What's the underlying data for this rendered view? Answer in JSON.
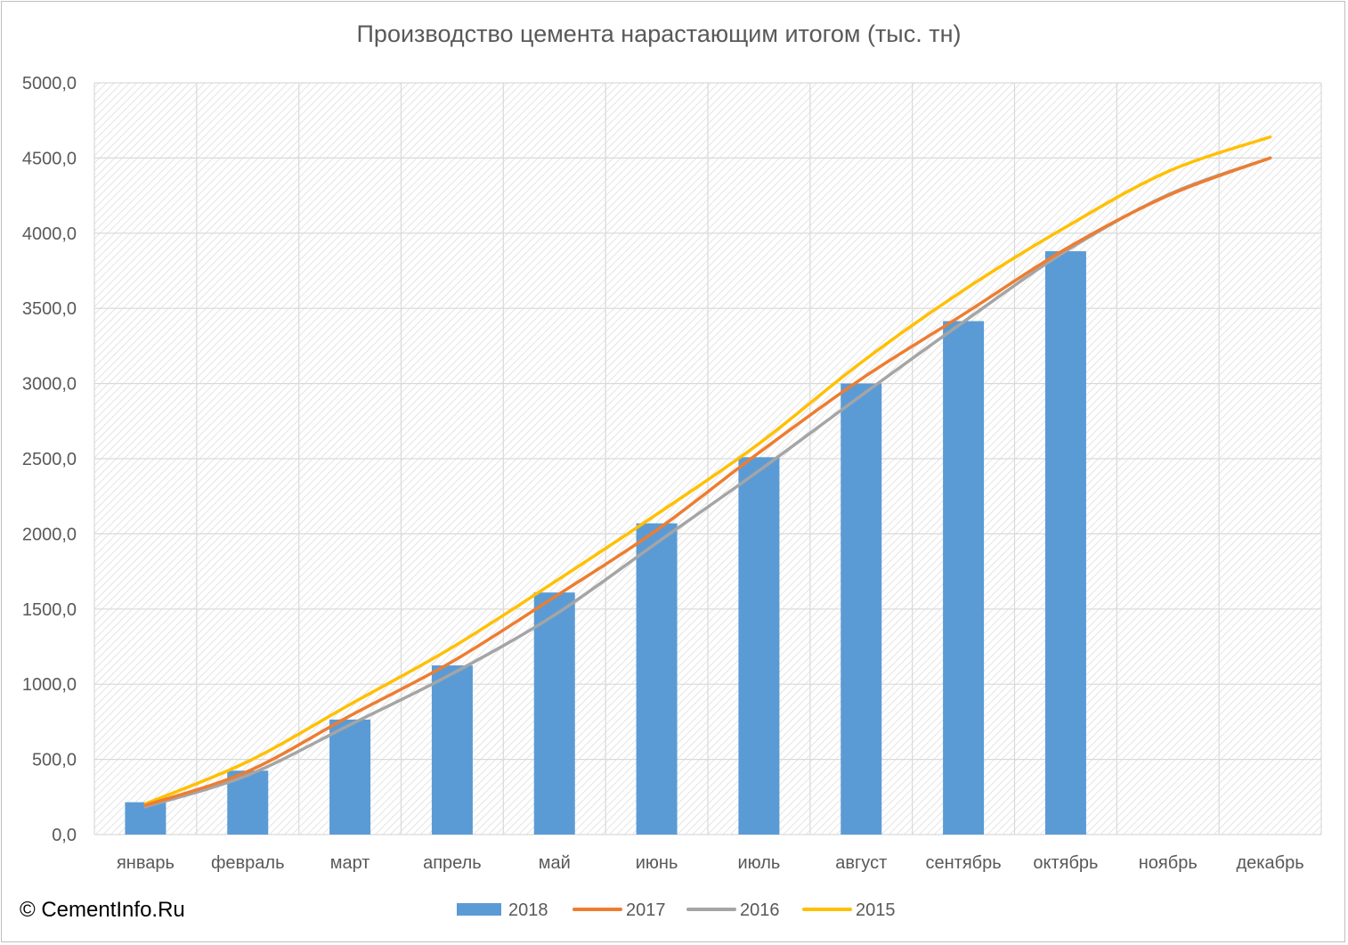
{
  "copyright": "© CementInfo.Ru",
  "chart_data": {
    "type": "bar+line",
    "title": "Производство цемента нарастающим итогом (тыс. тн)",
    "categories": [
      "январь",
      "февраль",
      "март",
      "апрель",
      "май",
      "июнь",
      "июль",
      "август",
      "сентябрь",
      "октябрь",
      "ноябрь",
      "декабрь"
    ],
    "ylim": [
      0,
      5000
    ],
    "yticks": [
      0,
      500,
      1000,
      1500,
      2000,
      2500,
      3000,
      3500,
      4000,
      4500,
      5000
    ],
    "ytick_labels": [
      "0,0",
      "500,0",
      "1000,0",
      "1500,0",
      "2000,0",
      "2500,0",
      "3000,0",
      "3500,0",
      "4000,0",
      "4500,0",
      "5000,0"
    ],
    "grid": true,
    "legend_position": "bottom",
    "series": [
      {
        "name": "2018",
        "kind": "bar",
        "color": "#5b9bd5",
        "values": [
          215,
          425,
          765,
          1125,
          1610,
          2070,
          2510,
          3000,
          3415,
          3880,
          null,
          null
        ]
      },
      {
        "name": "2017",
        "kind": "line",
        "color": "#ed7d31",
        "values": [
          195,
          420,
          790,
          1150,
          1580,
          2025,
          2540,
          3030,
          3460,
          3895,
          4250,
          4500
        ]
      },
      {
        "name": "2016",
        "kind": "line",
        "color": "#a5a5a5",
        "values": [
          185,
          395,
          730,
          1070,
          1460,
          1940,
          2420,
          2920,
          3410,
          3880,
          4255,
          4500
        ]
      },
      {
        "name": "2015",
        "kind": "line",
        "color": "#ffc000",
        "values": [
          205,
          485,
          865,
          1245,
          1680,
          2130,
          2600,
          3140,
          3620,
          4040,
          4410,
          4640
        ]
      }
    ]
  }
}
